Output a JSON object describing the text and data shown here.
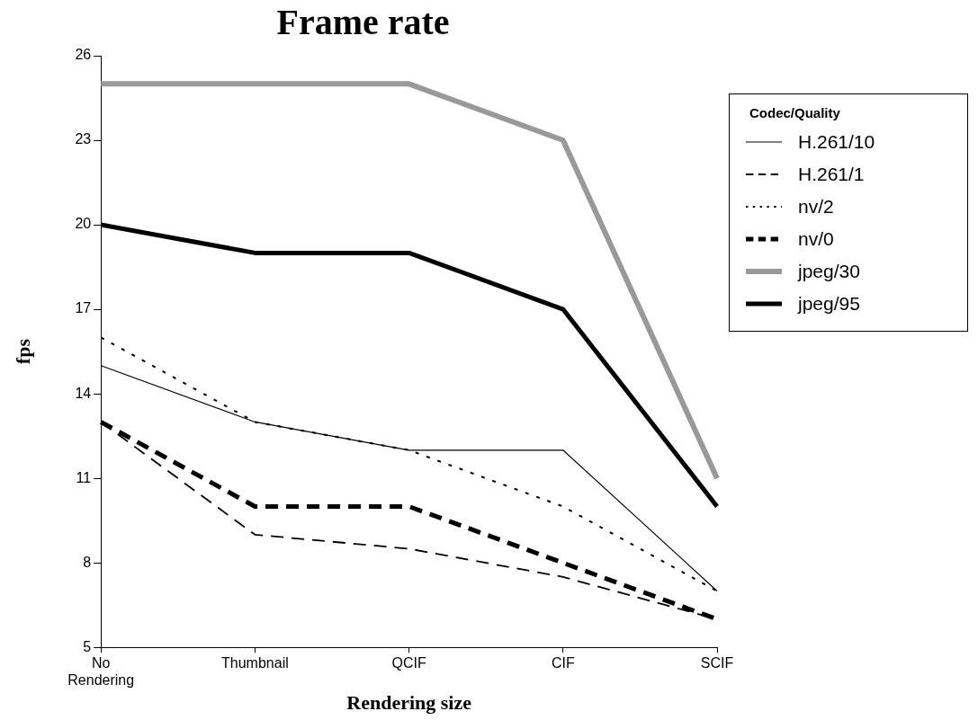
{
  "chart_data": {
    "type": "line",
    "title": "Frame rate",
    "xlabel": "Rendering size",
    "ylabel": "fps",
    "legend_title": "Codec/Quality",
    "categories": [
      "No Rendering",
      "Thumbnail",
      "QCIF",
      "CIF",
      "SCIF"
    ],
    "series": [
      {
        "name": "H.261/10",
        "color": "#000000",
        "line_style": "solid",
        "values": [
          15,
          13,
          12,
          12,
          7
        ]
      },
      {
        "name": "H.261/1",
        "color": "#000000",
        "line_style": "dashed",
        "values": [
          13,
          9,
          8.5,
          7.5,
          6
        ]
      },
      {
        "name": "nv/2",
        "color": "#000000",
        "line_style": "dotted",
        "values": [
          16,
          13,
          12,
          10,
          7
        ]
      },
      {
        "name": "nv/0",
        "color": "#000000",
        "line_style": "dashed",
        "values": [
          13,
          10,
          10,
          8,
          6
        ]
      },
      {
        "name": "jpeg/30",
        "color": "#999999",
        "line_style": "solid",
        "values": [
          25,
          25,
          25,
          23,
          11
        ]
      },
      {
        "name": "jpeg/95",
        "color": "#000000",
        "line_style": "solid",
        "values": [
          20,
          19,
          19,
          17,
          10
        ]
      }
    ],
    "ylim": [
      5,
      26
    ],
    "yticks": [
      5,
      8,
      11,
      14,
      17,
      20,
      23,
      26
    ],
    "grid": false,
    "legend": "right",
    "marker": "none"
  }
}
